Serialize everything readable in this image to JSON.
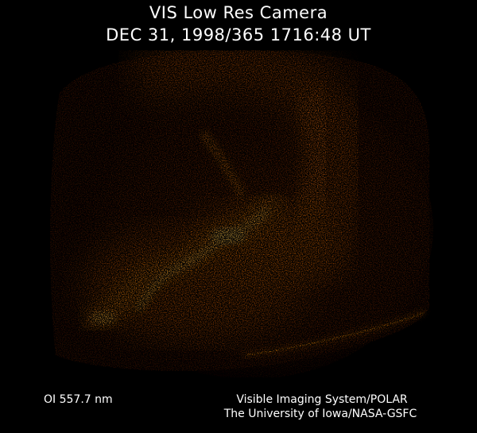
{
  "header": {
    "title": "VIS Low Res Camera",
    "timestamp": "DEC 31, 1998/365 1716:48 UT"
  },
  "image": {
    "subject": "auroral-oval-ultraviolet-image",
    "palette": {
      "background": "#000000",
      "dim": "#5a1e00",
      "mid": "#b04a00",
      "bright": "#f08a10",
      "peak": "#ffd060"
    }
  },
  "footer": {
    "filter": "OI  557.7 nm",
    "credit_line_1": "Visible Imaging System/POLAR",
    "credit_line_2": "The University of Iowa/NASA-GSFC"
  }
}
